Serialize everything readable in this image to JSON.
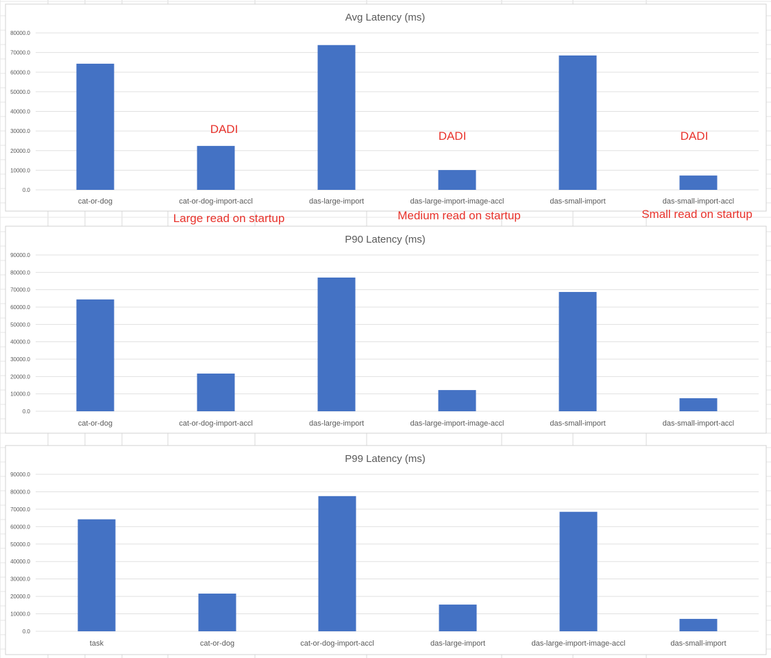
{
  "chart_data": [
    {
      "type": "bar",
      "title": "Avg Latency (ms)",
      "categories": [
        "cat-or-dog",
        "cat-or-dog-import-accl",
        "das-large-import",
        "das-large-import-image-accl",
        "das-small-import",
        "das-small-import-accl"
      ],
      "values": [
        64300,
        22400,
        73800,
        10100,
        68500,
        7300
      ],
      "ylim": [
        0,
        80000
      ],
      "yticks": [
        "0.0",
        "10000.0",
        "20000.0",
        "30000.0",
        "40000.0",
        "50000.0",
        "60000.0",
        "70000.0",
        "80000.0"
      ],
      "grid": true,
      "color": "#4472c4"
    },
    {
      "type": "bar",
      "title": "P90 Latency (ms)",
      "categories": [
        "cat-or-dog",
        "cat-or-dog-import-accl",
        "das-large-import",
        "das-large-import-image-accl",
        "das-small-import",
        "das-small-import-accl"
      ],
      "values": [
        64400,
        21700,
        77000,
        12200,
        68700,
        7500
      ],
      "ylim": [
        0,
        90000
      ],
      "yticks": [
        "0.0",
        "10000.0",
        "20000.0",
        "30000.0",
        "40000.0",
        "50000.0",
        "60000.0",
        "70000.0",
        "80000.0",
        "90000.0"
      ],
      "grid": true,
      "color": "#4472c4"
    },
    {
      "type": "bar",
      "title": "P99 Latency (ms)",
      "categories": [
        "task",
        "cat-or-dog",
        "cat-or-dog-import-accl",
        "das-large-import",
        "das-large-import-image-accl",
        "das-small-import"
      ],
      "values": [
        64200,
        21600,
        77500,
        15300,
        68500,
        7100
      ],
      "ylim": [
        0,
        90000
      ],
      "yticks": [
        "0.0",
        "10000.0",
        "20000.0",
        "30000.0",
        "40000.0",
        "50000.0",
        "60000.0",
        "70000.0",
        "80000.0",
        "90000.0"
      ],
      "grid": true,
      "color": "#4472c4"
    }
  ],
  "annotations": {
    "dadi": [
      "DADI",
      "DADI",
      "DADI"
    ],
    "notes": [
      "Large read on startup",
      "Medium read on startup",
      "Small read on startup"
    ],
    "color": "#e8322b"
  }
}
